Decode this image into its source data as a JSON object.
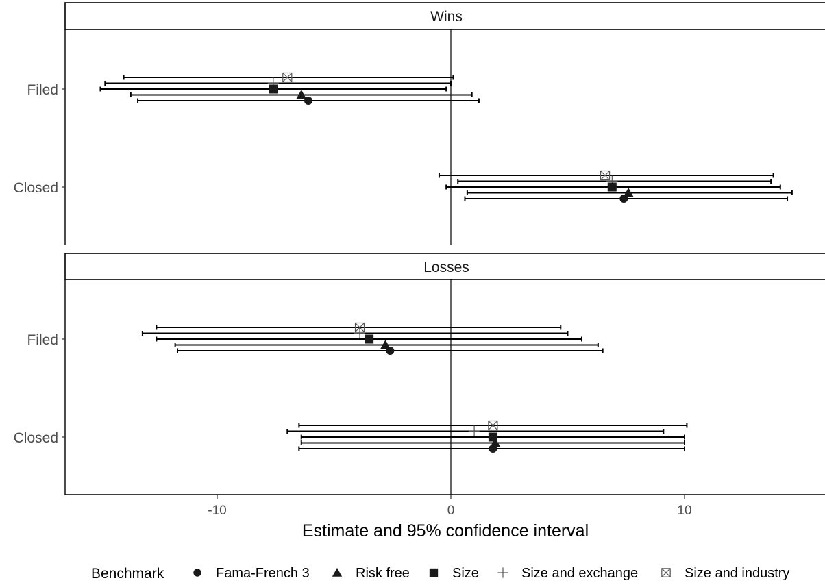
{
  "chart_data": {
    "type": "scatter",
    "subtype": "forest-plot-errorbars",
    "xlabel": "Estimate and 95% confidence interval",
    "xlim": [
      -16.6,
      16.2
    ],
    "x_ticks": [
      -10,
      0,
      10
    ],
    "x_tick_labels": [
      "-10",
      "0",
      "10"
    ],
    "y_categories": [
      "Filed",
      "Closed"
    ],
    "reference_line": 0,
    "grid": false,
    "legend": {
      "title": "Benchmark",
      "placement": "bottom",
      "entries": [
        {
          "name": "Fama-French 3",
          "shape": "circle"
        },
        {
          "name": "Risk free",
          "shape": "triangle"
        },
        {
          "name": "Size",
          "shape": "square"
        },
        {
          "name": "Size and exchange",
          "shape": "plus"
        },
        {
          "name": "Size and industry",
          "shape": "boxx"
        }
      ]
    },
    "colors": {
      "marker": "#1a1a1a",
      "errorbar": "#000000",
      "open_marker": "#555555"
    },
    "panels": [
      {
        "label": "Wins",
        "groups": [
          {
            "category": "Filed",
            "series": [
              {
                "benchmark": "Size and industry",
                "estimate": -7.0,
                "low": -14.0,
                "high": 0.1
              },
              {
                "benchmark": "Size and exchange",
                "estimate": -7.6,
                "low": -14.8,
                "high": 0.0
              },
              {
                "benchmark": "Size",
                "estimate": -7.6,
                "low": -15.0,
                "high": -0.2
              },
              {
                "benchmark": "Risk free",
                "estimate": -6.4,
                "low": -13.7,
                "high": 0.9
              },
              {
                "benchmark": "Fama-French 3",
                "estimate": -6.1,
                "low": -13.4,
                "high": 1.2
              }
            ]
          },
          {
            "category": "Closed",
            "series": [
              {
                "benchmark": "Size and industry",
                "estimate": 6.6,
                "low": -0.5,
                "high": 13.8
              },
              {
                "benchmark": "Size and exchange",
                "estimate": 6.9,
                "low": 0.3,
                "high": 13.7
              },
              {
                "benchmark": "Size",
                "estimate": 6.9,
                "low": -0.2,
                "high": 14.1
              },
              {
                "benchmark": "Risk free",
                "estimate": 7.6,
                "low": 0.7,
                "high": 14.6
              },
              {
                "benchmark": "Fama-French 3",
                "estimate": 7.4,
                "low": 0.6,
                "high": 14.4
              }
            ]
          }
        ]
      },
      {
        "label": "Losses",
        "groups": [
          {
            "category": "Filed",
            "series": [
              {
                "benchmark": "Size and industry",
                "estimate": -3.9,
                "low": -12.6,
                "high": 4.7
              },
              {
                "benchmark": "Size and exchange",
                "estimate": -3.9,
                "low": -13.2,
                "high": 5.0
              },
              {
                "benchmark": "Size",
                "estimate": -3.5,
                "low": -12.6,
                "high": 5.6
              },
              {
                "benchmark": "Risk free",
                "estimate": -2.8,
                "low": -11.8,
                "high": 6.3
              },
              {
                "benchmark": "Fama-French 3",
                "estimate": -2.6,
                "low": -11.7,
                "high": 6.5
              }
            ]
          },
          {
            "category": "Closed",
            "series": [
              {
                "benchmark": "Size and industry",
                "estimate": 1.8,
                "low": -6.5,
                "high": 10.1
              },
              {
                "benchmark": "Size and exchange",
                "estimate": 1.0,
                "low": -7.0,
                "high": 9.1
              },
              {
                "benchmark": "Size",
                "estimate": 1.8,
                "low": -6.4,
                "high": 10.0
              },
              {
                "benchmark": "Risk free",
                "estimate": 1.9,
                "low": -6.4,
                "high": 10.0
              },
              {
                "benchmark": "Fama-French 3",
                "estimate": 1.8,
                "low": -6.5,
                "high": 10.0
              }
            ]
          }
        ]
      }
    ]
  }
}
